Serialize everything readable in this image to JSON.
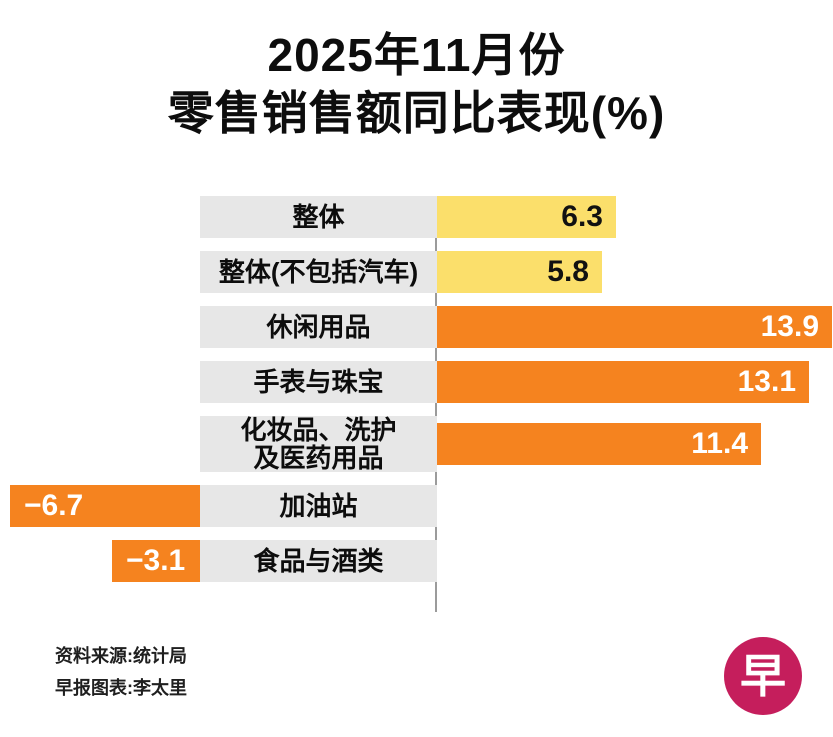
{
  "title": {
    "line1": "2025年11月份",
    "line2": "零售销售额同比表现(%)"
  },
  "chart_data": {
    "type": "bar",
    "orientation": "horizontal",
    "title": "2025年11月份 零售销售额同比表现(%)",
    "unit": "%",
    "xlim": [
      -7,
      14
    ],
    "grid": false,
    "legend": "none",
    "categories": [
      "整体",
      "整体(不包括汽车)",
      "休闲用品",
      "手表与珠宝",
      "化妆品、洗护及医药用品",
      "加油站",
      "食品与酒类"
    ],
    "values": [
      6.3,
      5.8,
      13.9,
      13.1,
      11.4,
      -6.7,
      -3.1
    ],
    "value_labels": [
      "6.3",
      "5.8",
      "13.9",
      "13.1",
      "11.4",
      "−6.7",
      "−3.1"
    ],
    "label_lines": [
      [
        "整体"
      ],
      [
        "整体(不包括汽车)"
      ],
      [
        "休闲用品"
      ],
      [
        "手表与珠宝"
      ],
      [
        "化妆品、洗护",
        "及医药用品"
      ],
      [
        "加油站"
      ],
      [
        "食品与酒类"
      ]
    ],
    "bar_colors": [
      "yellow",
      "yellow",
      "orange",
      "orange",
      "orange",
      "orange",
      "orange"
    ]
  },
  "colors": {
    "yellow": "#FBDF6B",
    "orange": "#F5831F",
    "stripe": "#E7E7E7",
    "axis_line": "#9B9B9B",
    "logo_bg": "#C51E5C",
    "value_on_yellow": "#111111",
    "value_on_orange": "#FFFFFF"
  },
  "footer": {
    "source": "资料来源:统计局",
    "credit": "早报图表:李太里"
  },
  "logo": {
    "char": "早"
  }
}
